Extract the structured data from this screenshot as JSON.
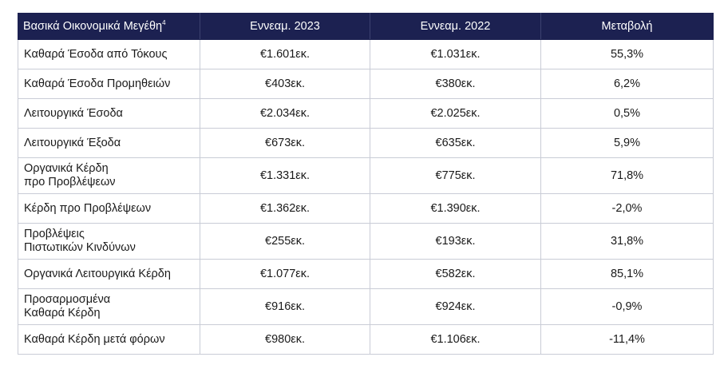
{
  "table": {
    "headers": {
      "metric": "Βασικά Οικονομικά Μεγέθη",
      "metric_sup": "4",
      "period_2023": "Εννεαμ. 2023",
      "period_2022": "Εννεαμ. 2022",
      "change": "Μεταβολή"
    },
    "rows": [
      {
        "label": "Καθαρά Έσοδα από Τόκους",
        "v2023": "€1.601εκ.",
        "v2022": "€1.031εκ.",
        "change": "55,3%"
      },
      {
        "label": "Καθαρά Έσοδα Προμηθειών",
        "v2023": "€403εκ.",
        "v2022": "€380εκ.",
        "change": "6,2%"
      },
      {
        "label": "Λειτουργικά Έσοδα",
        "v2023": "€2.034εκ.",
        "v2022": "€2.025εκ.",
        "change": "0,5%"
      },
      {
        "label": "Λειτουργικά Έξοδα",
        "v2023": "€673εκ.",
        "v2022": "€635εκ.",
        "change": "5,9%"
      },
      {
        "label": "Οργανικά Κέρδη\nπρο Προβλέψεων",
        "v2023": "€1.331εκ.",
        "v2022": "€775εκ.",
        "change": "71,8%"
      },
      {
        "label": "Κέρδη προ Προβλέψεων",
        "v2023": "€1.362εκ.",
        "v2022": "€1.390εκ.",
        "change": "-2,0%"
      },
      {
        "label": "Προβλέψεις\nΠιστωτικών Κινδύνων",
        "v2023": "€255εκ.",
        "v2022": "€193εκ.",
        "change": "31,8%"
      },
      {
        "label": "Οργανικά Λειτουργικά Κέρδη",
        "v2023": "€1.077εκ.",
        "v2022": "€582εκ.",
        "change": "85,1%"
      },
      {
        "label": "Προσαρμοσμένα\nΚαθαρά Κέρδη",
        "v2023": "€916εκ.",
        "v2022": "€924εκ.",
        "change": "-0,9%"
      },
      {
        "label": "Καθαρά Κέρδη μετά φόρων",
        "v2023": "€980εκ.",
        "v2022": "€1.106εκ.",
        "change": "-11,4%"
      }
    ]
  }
}
